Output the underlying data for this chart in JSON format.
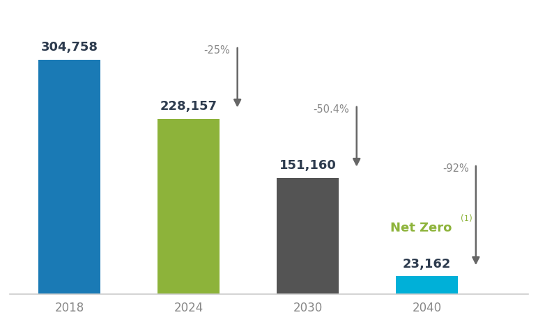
{
  "categories": [
    "2018",
    "2024",
    "2030",
    "2040"
  ],
  "values": [
    304758,
    228157,
    151160,
    23162
  ],
  "bar_colors": [
    "#1a7ab5",
    "#8db33a",
    "#545454",
    "#00b0d8"
  ],
  "value_labels": [
    "304,758",
    "228,157",
    "151,160",
    "23,162"
  ],
  "pct_labels": [
    "-25%",
    "-50.4%",
    "-92%"
  ],
  "net_zero_color": "#8db33a",
  "value_label_color": "#2d3b4e",
  "pct_label_color": "#888888",
  "arrow_color": "#666666",
  "background_color": "#ffffff",
  "ylim": [
    0,
    370000
  ],
  "bar_width": 0.52
}
